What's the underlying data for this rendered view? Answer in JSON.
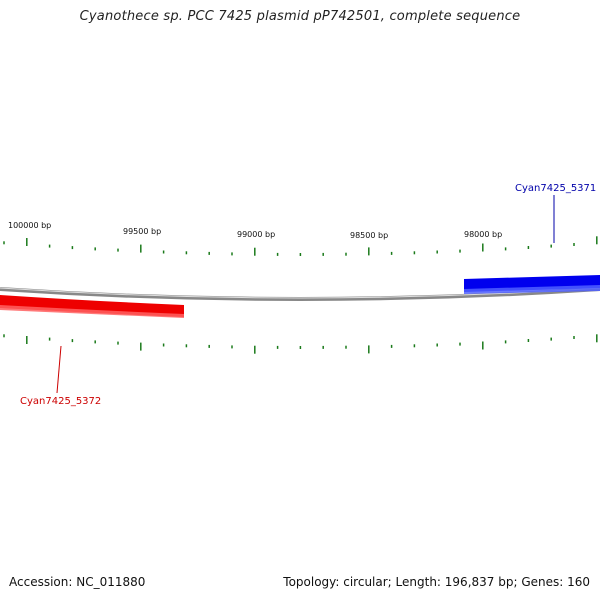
{
  "title": "Cyanothece sp. PCC 7425 plasmid pP742501, complete sequence",
  "footer": {
    "accession": "Accession: NC_011880",
    "summary": "Topology: circular; Length: 196,837 bp; Genes: 160"
  },
  "scale": {
    "labels": [
      {
        "bp": 100000,
        "text": "100000 bp"
      },
      {
        "bp": 99500,
        "text": "99500 bp"
      },
      {
        "bp": 99000,
        "text": "99000 bp"
      },
      {
        "bp": 98500,
        "text": "98500 bp"
      },
      {
        "bp": 98000,
        "text": "98000 bp"
      }
    ],
    "tick_color": "#1a7a1a"
  },
  "genes": [
    {
      "id": "Cyan7425_5371",
      "label": "Cyan7425_5371",
      "strand": "+",
      "color": "#0000ee"
    },
    {
      "id": "Cyan7425_5372",
      "label": "Cyan7425_5372",
      "strand": "-",
      "color": "#ee0000"
    }
  ],
  "backbone_color": "#777777"
}
